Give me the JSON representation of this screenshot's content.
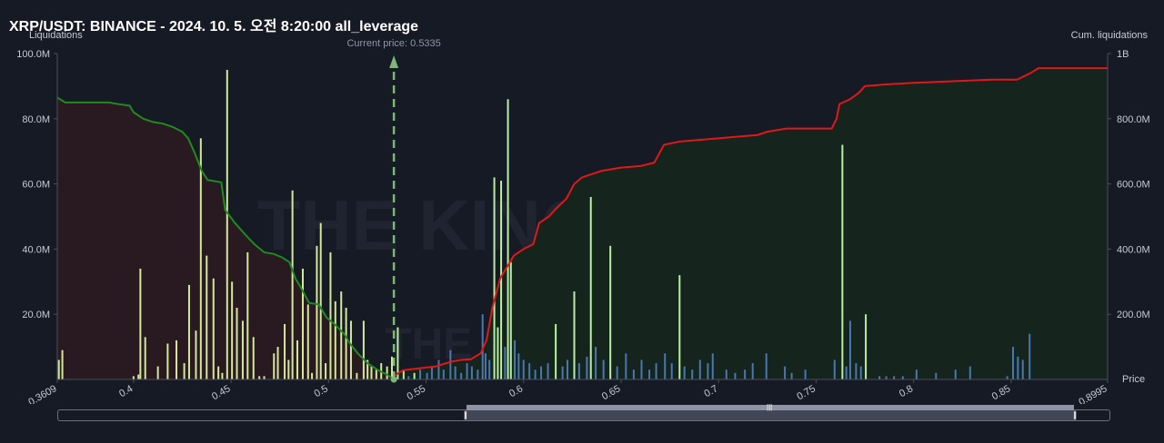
{
  "title": "XRP/USDT: BINANCE - 2024. 10. 5. 오전 8:20:00 all_leverage",
  "chart_data": {
    "type": "bar",
    "left_axis_label": "Liquidations",
    "right_axis_label": "Cum. liquidations",
    "x_axis_label": "Price",
    "current_price_label": "Current price: 0.5335",
    "current_price": 0.5335,
    "x_range": [
      0.3609,
      0.8995
    ],
    "x_tick_labels": [
      "0.3609",
      "0.4",
      "0.45",
      "0.5",
      "0.55",
      "0.6",
      "0.65",
      "0.7",
      "0.75",
      "0.8",
      "0.85",
      "0.8995"
    ],
    "y_left_ticks": [
      "20.0M",
      "40.0M",
      "60.0M",
      "80.0M",
      "100.0M"
    ],
    "y_left_range": [
      0,
      100
    ],
    "y_right_ticks": [
      "200.0M",
      "400.0M",
      "600.0M",
      "800.0M",
      "1B"
    ],
    "y_right_range": [
      0,
      1000
    ],
    "watermark": "THE KINGFISHER",
    "colors": {
      "background": "#161a25",
      "long_bars": "#d4e89a",
      "short_bars_bright": "#b8f0a0",
      "short_bars_blue": "#4a77b0",
      "long_cum_line": "#1f8a1f",
      "long_cum_fill": "#2a1a22",
      "short_cum_line": "#e01818",
      "short_cum_fill": "#15251c",
      "current_price_line": "#7fb57a"
    },
    "long_bars": [
      {
        "x": 0.3617,
        "y": 6
      },
      {
        "x": 0.3635,
        "y": 9
      },
      {
        "x": 0.4,
        "y": 1
      },
      {
        "x": 0.4025,
        "y": 1.5
      },
      {
        "x": 0.4035,
        "y": 34
      },
      {
        "x": 0.406,
        "y": 13
      },
      {
        "x": 0.4125,
        "y": 4
      },
      {
        "x": 0.4175,
        "y": 11
      },
      {
        "x": 0.422,
        "y": 12
      },
      {
        "x": 0.426,
        "y": 5
      },
      {
        "x": 0.4285,
        "y": 29
      },
      {
        "x": 0.432,
        "y": 15
      },
      {
        "x": 0.4345,
        "y": 74
      },
      {
        "x": 0.4375,
        "y": 38
      },
      {
        "x": 0.441,
        "y": 31
      },
      {
        "x": 0.4435,
        "y": 4
      },
      {
        "x": 0.4455,
        "y": 2
      },
      {
        "x": 0.448,
        "y": 95
      },
      {
        "x": 0.4505,
        "y": 30
      },
      {
        "x": 0.453,
        "y": 22
      },
      {
        "x": 0.456,
        "y": 18
      },
      {
        "x": 0.4585,
        "y": 39
      },
      {
        "x": 0.4615,
        "y": 13
      },
      {
        "x": 0.4645,
        "y": 1
      },
      {
        "x": 0.467,
        "y": 1
      },
      {
        "x": 0.472,
        "y": 8
      },
      {
        "x": 0.474,
        "y": 10
      },
      {
        "x": 0.4775,
        "y": 17
      },
      {
        "x": 0.4795,
        "y": 6
      },
      {
        "x": 0.4815,
        "y": 58
      },
      {
        "x": 0.484,
        "y": 12
      },
      {
        "x": 0.4868,
        "y": 34
      },
      {
        "x": 0.4895,
        "y": 23
      },
      {
        "x": 0.4915,
        "y": 2
      },
      {
        "x": 0.494,
        "y": 41
      },
      {
        "x": 0.496,
        "y": 48
      },
      {
        "x": 0.4985,
        "y": 5
      },
      {
        "x": 0.501,
        "y": 39
      },
      {
        "x": 0.5035,
        "y": 24
      },
      {
        "x": 0.5065,
        "y": 27
      },
      {
        "x": 0.509,
        "y": 22
      },
      {
        "x": 0.5115,
        "y": 18
      },
      {
        "x": 0.5145,
        "y": 2
      },
      {
        "x": 0.518,
        "y": 18
      },
      {
        "x": 0.52,
        "y": 6
      },
      {
        "x": 0.522,
        "y": 4
      },
      {
        "x": 0.5245,
        "y": 3
      },
      {
        "x": 0.527,
        "y": 5
      },
      {
        "x": 0.53,
        "y": 4
      },
      {
        "x": 0.5325,
        "y": 7
      }
    ],
    "short_bars": [
      {
        "x": 0.5355,
        "y": 16,
        "bright": true
      },
      {
        "x": 0.5385,
        "y": 3,
        "bright": true
      },
      {
        "x": 0.541,
        "y": 1,
        "bright": false
      },
      {
        "x": 0.544,
        "y": 2,
        "bright": true
      },
      {
        "x": 0.547,
        "y": 3,
        "bright": false
      },
      {
        "x": 0.5505,
        "y": 2,
        "bright": false
      },
      {
        "x": 0.553,
        "y": 4,
        "bright": false
      },
      {
        "x": 0.5565,
        "y": 6,
        "bright": false
      },
      {
        "x": 0.559,
        "y": 3,
        "bright": false
      },
      {
        "x": 0.5625,
        "y": 9,
        "bright": false
      },
      {
        "x": 0.565,
        "y": 4,
        "bright": false
      },
      {
        "x": 0.568,
        "y": 2,
        "bright": false
      },
      {
        "x": 0.571,
        "y": 5,
        "bright": false
      },
      {
        "x": 0.5735,
        "y": 4,
        "bright": false
      },
      {
        "x": 0.5765,
        "y": 3,
        "bright": false
      },
      {
        "x": 0.579,
        "y": 20,
        "bright": false
      },
      {
        "x": 0.5805,
        "y": 8,
        "bright": false
      },
      {
        "x": 0.5825,
        "y": 6,
        "bright": false
      },
      {
        "x": 0.585,
        "y": 62,
        "bright": true
      },
      {
        "x": 0.5868,
        "y": 16,
        "bright": true
      },
      {
        "x": 0.5885,
        "y": 61,
        "bright": true
      },
      {
        "x": 0.5905,
        "y": 10,
        "bright": false
      },
      {
        "x": 0.592,
        "y": 86,
        "bright": true
      },
      {
        "x": 0.5935,
        "y": 36,
        "bright": true
      },
      {
        "x": 0.5955,
        "y": 12,
        "bright": false
      },
      {
        "x": 0.5975,
        "y": 8,
        "bright": false
      },
      {
        "x": 0.6,
        "y": 6,
        "bright": false
      },
      {
        "x": 0.603,
        "y": 5,
        "bright": false
      },
      {
        "x": 0.606,
        "y": 3,
        "bright": false
      },
      {
        "x": 0.609,
        "y": 4,
        "bright": false
      },
      {
        "x": 0.6125,
        "y": 5,
        "bright": false
      },
      {
        "x": 0.6165,
        "y": 17,
        "bright": true
      },
      {
        "x": 0.62,
        "y": 4,
        "bright": false
      },
      {
        "x": 0.6225,
        "y": 6,
        "bright": false
      },
      {
        "x": 0.626,
        "y": 27,
        "bright": true
      },
      {
        "x": 0.6285,
        "y": 5,
        "bright": false
      },
      {
        "x": 0.6325,
        "y": 7,
        "bright": false
      },
      {
        "x": 0.6345,
        "y": 56,
        "bright": true
      },
      {
        "x": 0.637,
        "y": 10,
        "bright": false
      },
      {
        "x": 0.641,
        "y": 6,
        "bright": false
      },
      {
        "x": 0.6445,
        "y": 41,
        "bright": true
      },
      {
        "x": 0.648,
        "y": 4,
        "bright": false
      },
      {
        "x": 0.6525,
        "y": 8,
        "bright": false
      },
      {
        "x": 0.6565,
        "y": 3,
        "bright": false
      },
      {
        "x": 0.6605,
        "y": 6,
        "bright": false
      },
      {
        "x": 0.6645,
        "y": 3,
        "bright": false
      },
      {
        "x": 0.668,
        "y": 5,
        "bright": false
      },
      {
        "x": 0.6725,
        "y": 8,
        "bright": false
      },
      {
        "x": 0.676,
        "y": 5,
        "bright": false
      },
      {
        "x": 0.68,
        "y": 32,
        "bright": true
      },
      {
        "x": 0.6825,
        "y": 4,
        "bright": false
      },
      {
        "x": 0.6865,
        "y": 3,
        "bright": false
      },
      {
        "x": 0.6905,
        "y": 6,
        "bright": false
      },
      {
        "x": 0.6945,
        "y": 5,
        "bright": false
      },
      {
        "x": 0.697,
        "y": 8,
        "bright": false
      },
      {
        "x": 0.704,
        "y": 3,
        "bright": false
      },
      {
        "x": 0.7085,
        "y": 2,
        "bright": false
      },
      {
        "x": 0.7135,
        "y": 3,
        "bright": false
      },
      {
        "x": 0.7175,
        "y": 5,
        "bright": false
      },
      {
        "x": 0.7245,
        "y": 8,
        "bright": false
      },
      {
        "x": 0.734,
        "y": 4,
        "bright": false
      },
      {
        "x": 0.7375,
        "y": 2,
        "bright": false
      },
      {
        "x": 0.7445,
        "y": 3,
        "bright": false
      },
      {
        "x": 0.7595,
        "y": 6,
        "bright": false
      },
      {
        "x": 0.7635,
        "y": 72,
        "bright": true
      },
      {
        "x": 0.7655,
        "y": 4,
        "bright": false
      },
      {
        "x": 0.7675,
        "y": 18,
        "bright": false
      },
      {
        "x": 0.7705,
        "y": 5,
        "bright": false
      },
      {
        "x": 0.773,
        "y": 4,
        "bright": false
      },
      {
        "x": 0.7755,
        "y": 20,
        "bright": true
      },
      {
        "x": 0.7825,
        "y": 1,
        "bright": false
      },
      {
        "x": 0.786,
        "y": 1,
        "bright": false
      },
      {
        "x": 0.79,
        "y": 1,
        "bright": false
      },
      {
        "x": 0.7945,
        "y": 1,
        "bright": false
      },
      {
        "x": 0.8015,
        "y": 3,
        "bright": false
      },
      {
        "x": 0.8115,
        "y": 2,
        "bright": false
      },
      {
        "x": 0.8215,
        "y": 3,
        "bright": false
      },
      {
        "x": 0.829,
        "y": 4,
        "bright": false
      },
      {
        "x": 0.848,
        "y": 1,
        "bright": false
      },
      {
        "x": 0.851,
        "y": 10,
        "bright": false
      },
      {
        "x": 0.8535,
        "y": 7,
        "bright": false
      },
      {
        "x": 0.856,
        "y": 6,
        "bright": false
      },
      {
        "x": 0.8595,
        "y": 14,
        "bright": false
      }
    ],
    "long_cumulative": [
      [
        0.3609,
        865
      ],
      [
        0.365,
        850
      ],
      [
        0.37,
        850
      ],
      [
        0.38,
        850
      ],
      [
        0.3875,
        850
      ],
      [
        0.392,
        845
      ],
      [
        0.398,
        840
      ],
      [
        0.4,
        820
      ],
      [
        0.405,
        800
      ],
      [
        0.41,
        790
      ],
      [
        0.415,
        785
      ],
      [
        0.42,
        775
      ],
      [
        0.425,
        760
      ],
      [
        0.428,
        740
      ],
      [
        0.431,
        700
      ],
      [
        0.435,
        640
      ],
      [
        0.438,
        612
      ],
      [
        0.44,
        610
      ],
      [
        0.445,
        605
      ],
      [
        0.447,
        520
      ],
      [
        0.452,
        480
      ],
      [
        0.458,
        440
      ],
      [
        0.462,
        415
      ],
      [
        0.467,
        390
      ],
      [
        0.472,
        385
      ],
      [
        0.476,
        375
      ],
      [
        0.48,
        360
      ],
      [
        0.483,
        310
      ],
      [
        0.486,
        280
      ],
      [
        0.49,
        235
      ],
      [
        0.495,
        230
      ],
      [
        0.499,
        190
      ],
      [
        0.503,
        170
      ],
      [
        0.508,
        140
      ],
      [
        0.511,
        110
      ],
      [
        0.515,
        80
      ],
      [
        0.52,
        50
      ],
      [
        0.525,
        30
      ],
      [
        0.53,
        15
      ],
      [
        0.5335,
        0
      ]
    ],
    "short_cumulative": [
      [
        0.5335,
        10
      ],
      [
        0.538,
        28
      ],
      [
        0.545,
        33
      ],
      [
        0.555,
        40
      ],
      [
        0.563,
        55
      ],
      [
        0.568,
        60
      ],
      [
        0.573,
        62
      ],
      [
        0.578,
        80
      ],
      [
        0.581,
        120
      ],
      [
        0.584,
        220
      ],
      [
        0.588,
        310
      ],
      [
        0.592,
        350
      ],
      [
        0.595,
        380
      ],
      [
        0.6,
        400
      ],
      [
        0.605,
        415
      ],
      [
        0.608,
        480
      ],
      [
        0.613,
        500
      ],
      [
        0.616,
        520
      ],
      [
        0.622,
        555
      ],
      [
        0.626,
        600
      ],
      [
        0.63,
        620
      ],
      [
        0.635,
        630
      ],
      [
        0.64,
        640
      ],
      [
        0.65,
        650
      ],
      [
        0.66,
        655
      ],
      [
        0.667,
        665
      ],
      [
        0.672,
        720
      ],
      [
        0.68,
        730
      ],
      [
        0.69,
        735
      ],
      [
        0.7,
        740
      ],
      [
        0.71,
        745
      ],
      [
        0.72,
        750
      ],
      [
        0.725,
        760
      ],
      [
        0.735,
        770
      ],
      [
        0.745,
        770
      ],
      [
        0.755,
        770
      ],
      [
        0.758,
        770
      ],
      [
        0.7605,
        800
      ],
      [
        0.762,
        845
      ],
      [
        0.7675,
        860
      ],
      [
        0.772,
        880
      ],
      [
        0.775,
        900
      ],
      [
        0.785,
        905
      ],
      [
        0.8,
        910
      ],
      [
        0.82,
        915
      ],
      [
        0.84,
        920
      ],
      [
        0.853,
        920
      ],
      [
        0.86,
        940
      ],
      [
        0.864,
        955
      ],
      [
        0.866,
        955
      ],
      [
        0.8995,
        955
      ]
    ]
  },
  "scrollbar": {
    "grip_label": "|||"
  }
}
